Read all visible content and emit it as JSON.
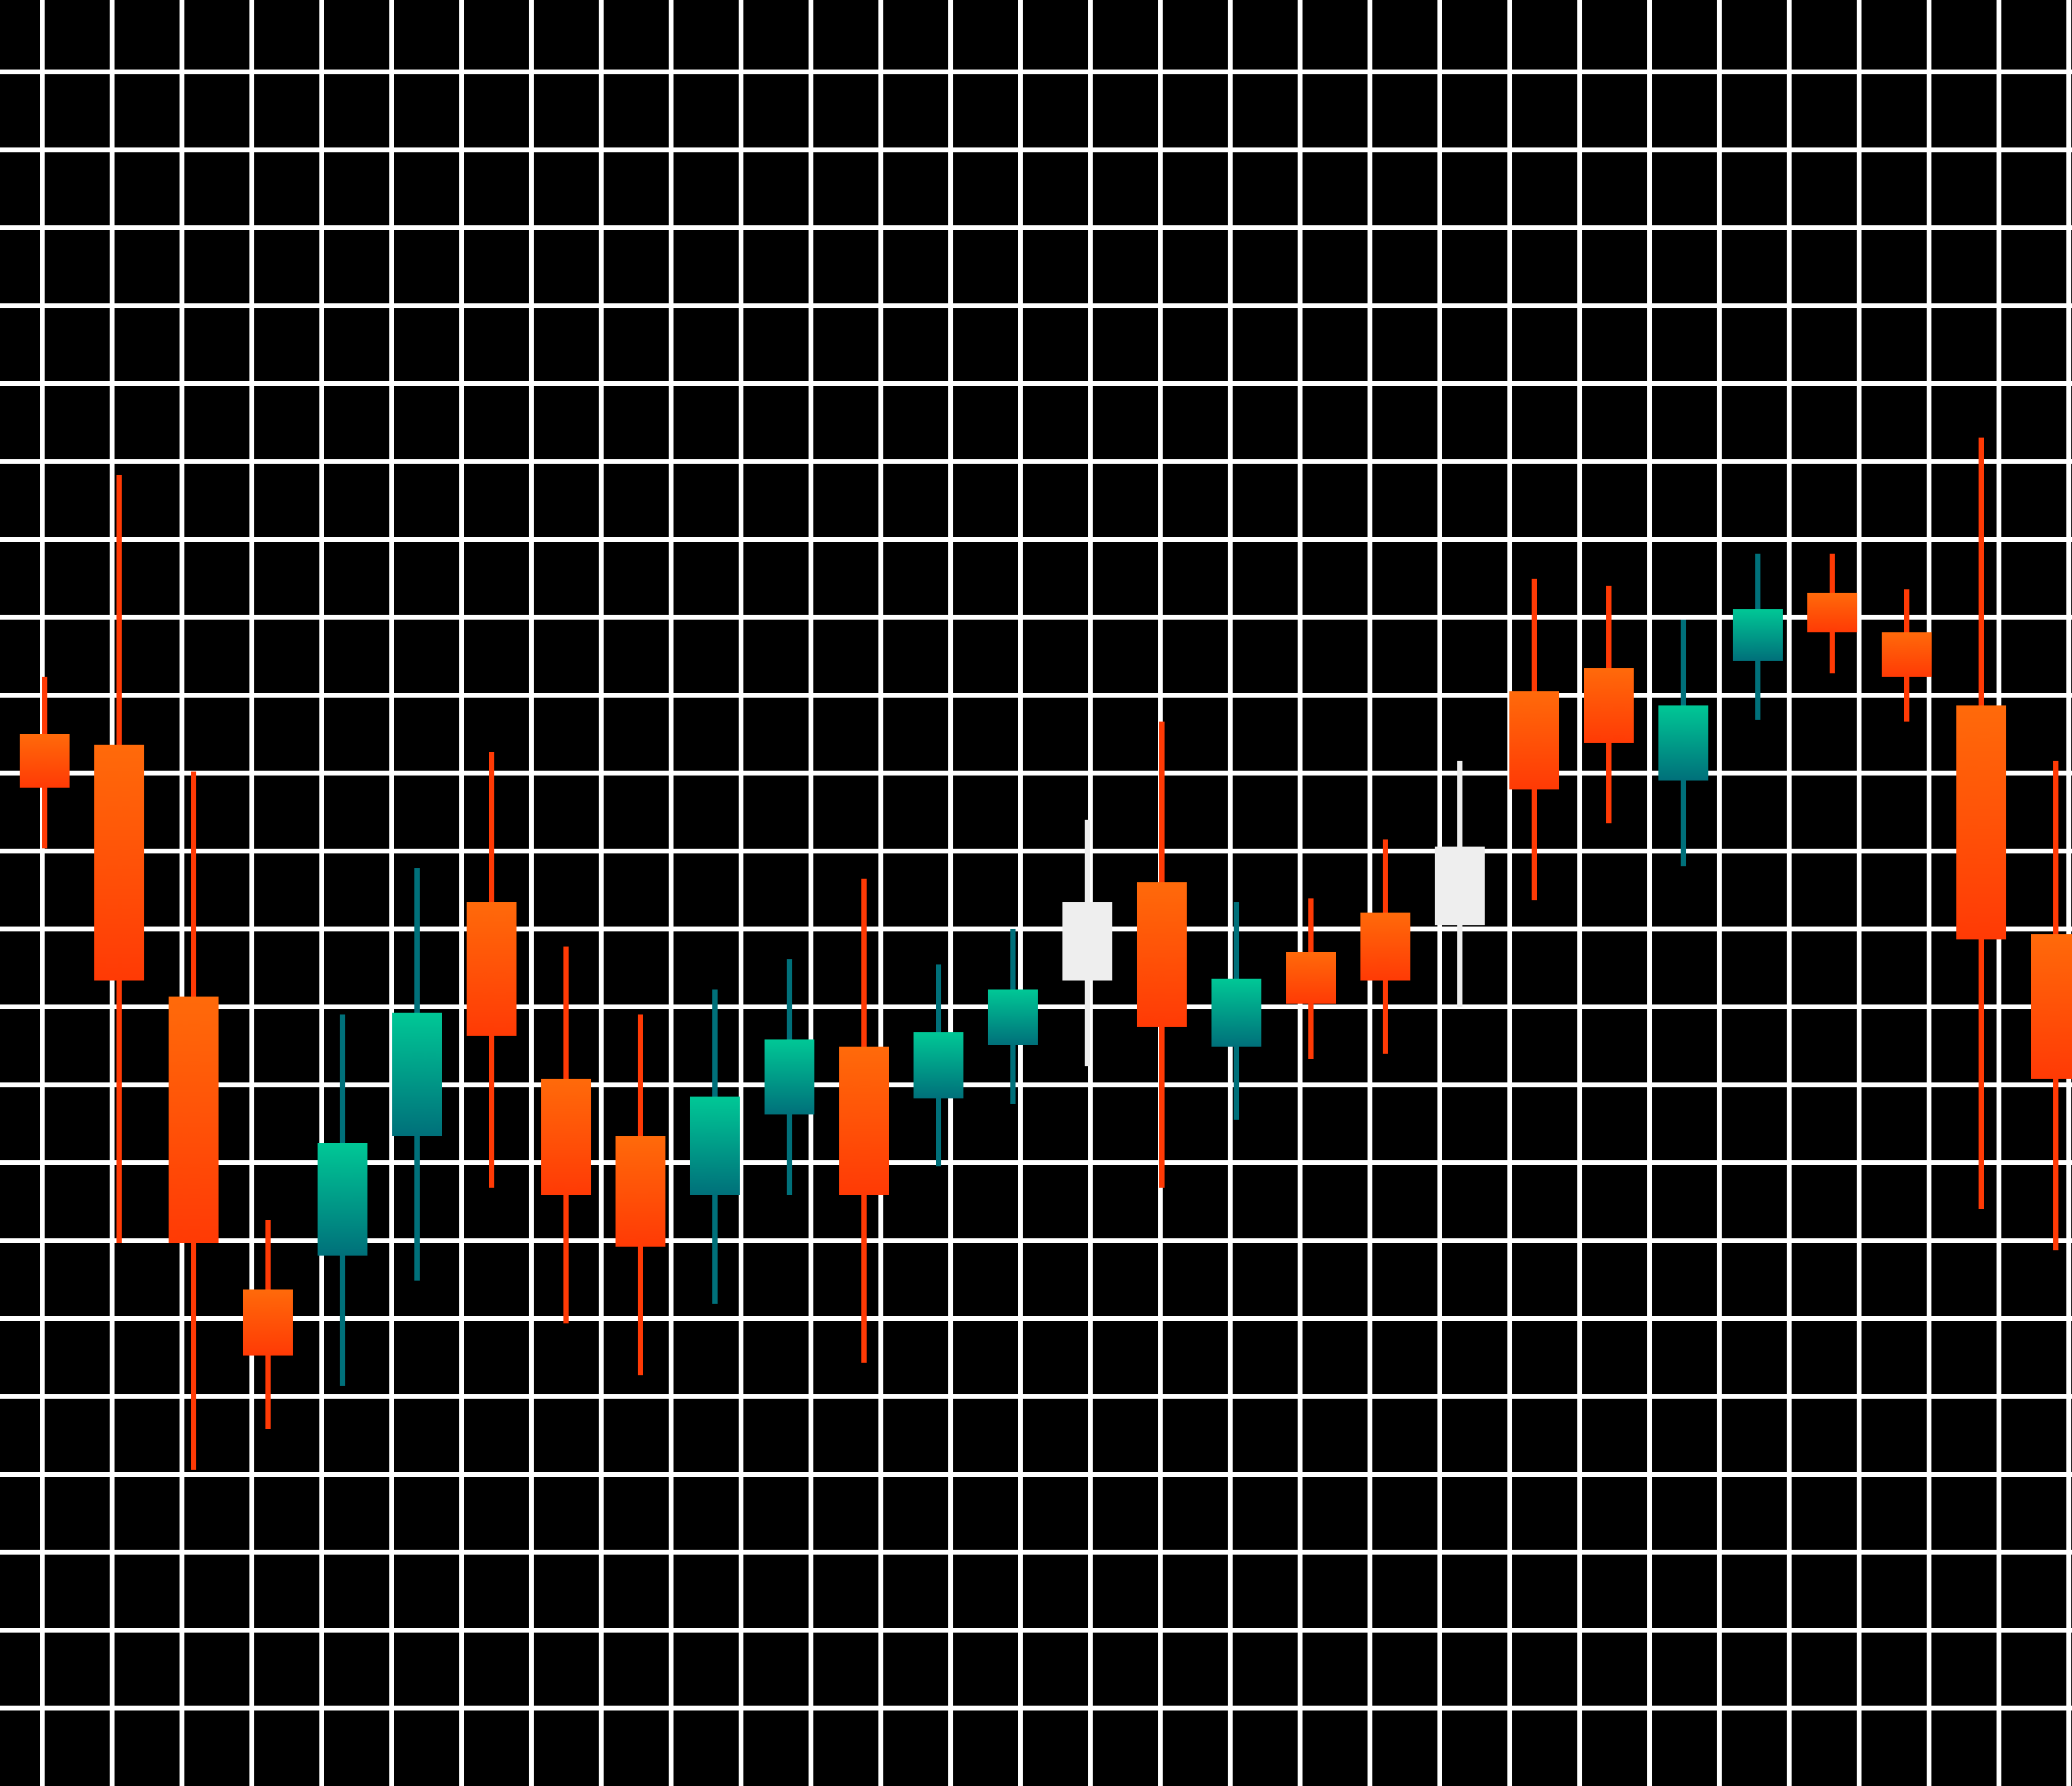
{
  "colors": {
    "background": "#000000",
    "grid": "#ffffff",
    "bearish_top": "#ff6a0a",
    "bearish_bottom": "#ff3a05",
    "bullish_top": "#00c896",
    "bullish_bottom": "#00707a",
    "neutral": "#eeeeee"
  },
  "chart_data": {
    "type": "candlestick",
    "title": "",
    "xlabel": "",
    "ylabel": "",
    "grid": true,
    "legend": "none",
    "ylim": [
      0,
      100
    ],
    "candles": [
      {
        "open": 58.9,
        "close": 55.9,
        "high": 62.1,
        "low": 52.5,
        "trend": "down"
      },
      {
        "open": 58.3,
        "close": 45.1,
        "high": 73.4,
        "low": 30.4,
        "trend": "down"
      },
      {
        "open": 44.2,
        "close": 30.4,
        "high": 56.8,
        "low": 17.7,
        "trend": "down"
      },
      {
        "open": 27.8,
        "close": 24.1,
        "high": 31.7,
        "low": 20.0,
        "trend": "down"
      },
      {
        "open": 29.7,
        "close": 36.0,
        "high": 43.2,
        "low": 22.4,
        "trend": "up"
      },
      {
        "open": 36.4,
        "close": 43.3,
        "high": 51.4,
        "low": 28.3,
        "trend": "up"
      },
      {
        "open": 49.5,
        "close": 42.0,
        "high": 57.9,
        "low": 33.5,
        "trend": "down"
      },
      {
        "open": 39.6,
        "close": 33.1,
        "high": 47.0,
        "low": 25.9,
        "trend": "down"
      },
      {
        "open": 36.4,
        "close": 30.2,
        "high": 43.2,
        "low": 23.0,
        "trend": "down"
      },
      {
        "open": 33.1,
        "close": 38.6,
        "high": 44.6,
        "low": 27.0,
        "trend": "up"
      },
      {
        "open": 37.6,
        "close": 41.8,
        "high": 46.3,
        "low": 33.1,
        "trend": "up"
      },
      {
        "open": 41.4,
        "close": 33.1,
        "high": 50.8,
        "low": 23.7,
        "trend": "down"
      },
      {
        "open": 38.5,
        "close": 42.2,
        "high": 46.0,
        "low": 34.7,
        "trend": "up"
      },
      {
        "open": 41.5,
        "close": 44.6,
        "high": 48.0,
        "low": 38.2,
        "trend": "up"
      },
      {
        "open": 45.1,
        "close": 49.5,
        "high": 54.1,
        "low": 40.3,
        "trend": "neutral"
      },
      {
        "open": 50.6,
        "close": 42.5,
        "high": 59.6,
        "low": 33.5,
        "trend": "down"
      },
      {
        "open": 41.4,
        "close": 45.2,
        "high": 49.5,
        "low": 37.3,
        "trend": "up"
      },
      {
        "open": 46.7,
        "close": 43.8,
        "high": 49.7,
        "low": 40.7,
        "trend": "down"
      },
      {
        "open": 48.9,
        "close": 45.1,
        "high": 53.0,
        "low": 41.0,
        "trend": "down"
      },
      {
        "open": 48.2,
        "close": 52.6,
        "high": 57.4,
        "low": 43.6,
        "trend": "neutral"
      },
      {
        "open": 61.3,
        "close": 55.8,
        "high": 67.6,
        "low": 49.6,
        "trend": "down"
      },
      {
        "open": 62.6,
        "close": 58.4,
        "high": 67.2,
        "low": 53.9,
        "trend": "down"
      },
      {
        "open": 56.3,
        "close": 60.5,
        "high": 65.3,
        "low": 51.5,
        "trend": "up"
      },
      {
        "open": 63.0,
        "close": 65.9,
        "high": 69.0,
        "low": 59.7,
        "trend": "up"
      },
      {
        "open": 66.8,
        "close": 64.6,
        "high": 69.0,
        "low": 62.3,
        "trend": "down"
      },
      {
        "open": 64.6,
        "close": 62.1,
        "high": 67.0,
        "low": 59.6,
        "trend": "down"
      },
      {
        "open": 60.5,
        "close": 47.4,
        "high": 75.5,
        "low": 32.3,
        "trend": "down"
      },
      {
        "open": 47.7,
        "close": 39.6,
        "high": 57.4,
        "low": 30.0,
        "trend": "down"
      }
    ]
  }
}
